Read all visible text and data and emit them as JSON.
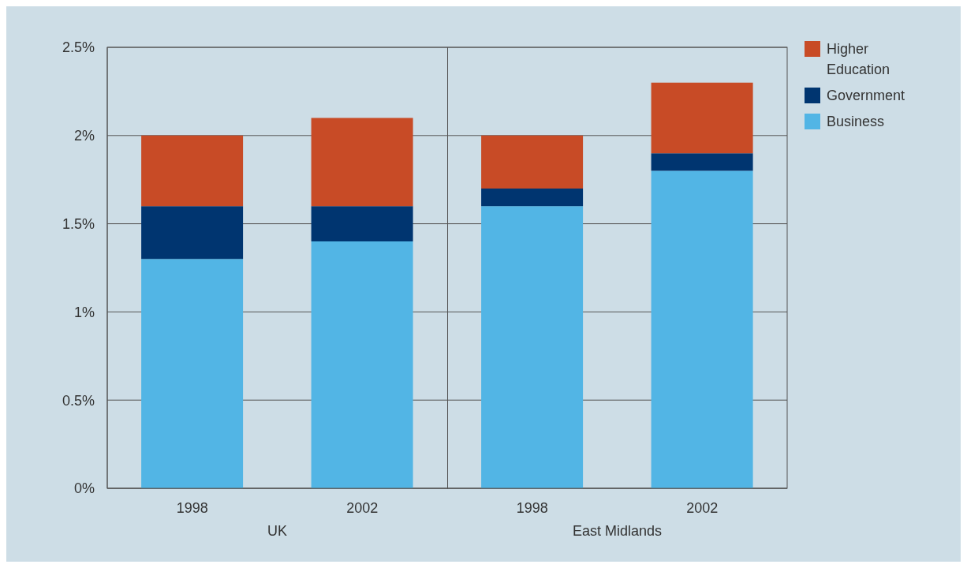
{
  "chart_data": {
    "type": "bar",
    "stacked": true,
    "categories": [
      "1998",
      "2002",
      "1998",
      "2002"
    ],
    "series": [
      {
        "name": "Business",
        "color": "#52b5e5",
        "values": [
          1.3,
          1.4,
          1.6,
          1.8
        ]
      },
      {
        "name": "Government",
        "color": "#003570",
        "values": [
          0.3,
          0.2,
          0.1,
          0.1
        ]
      },
      {
        "name": "Higher Education",
        "color": "#c84b26",
        "values": [
          0.4,
          0.5,
          0.3,
          0.4
        ]
      }
    ],
    "ylim": [
      0,
      2.5
    ],
    "yticks": [
      {
        "value": 0,
        "label": "0%"
      },
      {
        "value": 0.5,
        "label": "0.5%"
      },
      {
        "value": 1,
        "label": "1%"
      },
      {
        "value": 1.5,
        "label": "1.5%"
      },
      {
        "value": 2,
        "label": "2%"
      },
      {
        "value": 2.5,
        "label": "2.5%"
      }
    ],
    "grid": "y",
    "legend": "top right",
    "annotations": [
      "UK",
      "East Midlands"
    ]
  }
}
